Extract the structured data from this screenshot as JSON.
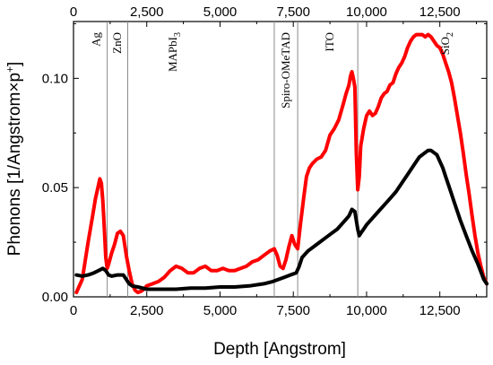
{
  "chart_data": {
    "type": "line",
    "xlabel": "Depth [Angstrom]",
    "ylabel_parts": {
      "main": "Phonons [1/Angstrom×p",
      "sup": "+",
      "end": "]"
    },
    "xlim": [
      0,
      14100
    ],
    "ylim": [
      0,
      0.126
    ],
    "xticks": [
      0,
      2500,
      5000,
      7500,
      10000,
      12500
    ],
    "xtick_labels": [
      "0",
      "2,500",
      "5,000",
      "7,500",
      "10,000",
      "12,500"
    ],
    "top_xticks": [
      0,
      2500,
      5000,
      7500,
      10000,
      12500
    ],
    "top_xtick_labels": [
      "0",
      "2,500",
      "5,000",
      "7,500",
      "10,000",
      "12,500"
    ],
    "yticks": [
      0.0,
      0.05,
      0.1
    ],
    "ytick_labels": [
      "0.00",
      "0.05",
      "0.10"
    ],
    "grid": false,
    "layer_boundaries": [
      1150,
      1850,
      6850,
      7650,
      9700
    ],
    "layers": [
      {
        "label": "Ag",
        "x": 780,
        "rotate": -90
      },
      {
        "label": "ZnO",
        "x": 1500,
        "rotate": -90
      },
      {
        "label": "MAPbI",
        "sub": "3",
        "x": 3400,
        "rotate": -90
      },
      {
        "label": "Spiro-OMeTAD",
        "x": 7250,
        "rotate": -90
      },
      {
        "label": "ITO",
        "x": 8750,
        "rotate": -90
      },
      {
        "label": "SiO",
        "sub": "2",
        "x": 12700,
        "rotate": -90
      }
    ],
    "series": [
      {
        "color": "#ff0000",
        "x": [
          100,
          300,
          500,
          650,
          750,
          850,
          900,
          950,
          1000,
          1050,
          1100,
          1150,
          1200,
          1300,
          1400,
          1500,
          1600,
          1700,
          1800,
          1900,
          2000,
          2100,
          2200,
          2300,
          2400,
          2500,
          2700,
          2900,
          3100,
          3300,
          3500,
          3700,
          3900,
          4100,
          4300,
          4500,
          4700,
          4900,
          5100,
          5300,
          5500,
          5700,
          5900,
          6100,
          6300,
          6500,
          6700,
          6850,
          6950,
          7050,
          7150,
          7250,
          7350,
          7450,
          7550,
          7650,
          7750,
          7850,
          7950,
          8050,
          8150,
          8300,
          8450,
          8600,
          8750,
          8900,
          9050,
          9200,
          9300,
          9400,
          9450,
          9500,
          9550,
          9600,
          9650,
          9700,
          9750,
          9800,
          9900,
          10000,
          10100,
          10200,
          10300,
          10400,
          10500,
          10600,
          10700,
          10800,
          10900,
          11000,
          11100,
          11200,
          11300,
          11400,
          11500,
          11600,
          11700,
          11800,
          11900,
          12000,
          12100,
          12200,
          12300,
          12400,
          12500,
          12600,
          12700,
          12800,
          12900,
          13000,
          13100,
          13200,
          13300,
          13400,
          13500,
          13600,
          13700,
          13800,
          13900,
          14000,
          14100
        ],
        "y": [
          0.002,
          0.008,
          0.025,
          0.037,
          0.045,
          0.051,
          0.054,
          0.052,
          0.044,
          0.032,
          0.018,
          0.013,
          0.015,
          0.02,
          0.024,
          0.029,
          0.03,
          0.028,
          0.019,
          0.012,
          0.006,
          0.003,
          0.002,
          0.0025,
          0.0035,
          0.005,
          0.006,
          0.007,
          0.009,
          0.012,
          0.014,
          0.013,
          0.011,
          0.011,
          0.013,
          0.014,
          0.012,
          0.012,
          0.013,
          0.012,
          0.012,
          0.013,
          0.014,
          0.016,
          0.017,
          0.019,
          0.021,
          0.022,
          0.019,
          0.014,
          0.013,
          0.017,
          0.023,
          0.028,
          0.024,
          0.022,
          0.034,
          0.045,
          0.055,
          0.059,
          0.061,
          0.063,
          0.064,
          0.067,
          0.074,
          0.077,
          0.081,
          0.088,
          0.093,
          0.097,
          0.101,
          0.103,
          0.1,
          0.096,
          0.066,
          0.049,
          0.055,
          0.069,
          0.077,
          0.083,
          0.085,
          0.083,
          0.084,
          0.087,
          0.091,
          0.093,
          0.094,
          0.097,
          0.098,
          0.102,
          0.105,
          0.107,
          0.11,
          0.114,
          0.117,
          0.119,
          0.12,
          0.12,
          0.12,
          0.119,
          0.12,
          0.119,
          0.117,
          0.115,
          0.114,
          0.111,
          0.107,
          0.103,
          0.098,
          0.091,
          0.083,
          0.075,
          0.066,
          0.056,
          0.047,
          0.037,
          0.028,
          0.02,
          0.014,
          0.009,
          0.006
        ],
        "name": ""
      },
      {
        "color": "#000000",
        "x": [
          100,
          300,
          500,
          700,
          850,
          1000,
          1100,
          1200,
          1300,
          1500,
          1700,
          1800,
          1900,
          2000,
          2200,
          2500,
          3000,
          3500,
          4000,
          4500,
          5000,
          5500,
          6000,
          6500,
          6800,
          7000,
          7200,
          7400,
          7600,
          7700,
          7800,
          8000,
          8200,
          8400,
          8600,
          8800,
          9000,
          9200,
          9400,
          9500,
          9600,
          9700,
          9750,
          9800,
          9900,
          10000,
          10200,
          10400,
          10600,
          10800,
          11000,
          11200,
          11400,
          11600,
          11800,
          12000,
          12100,
          12200,
          12300,
          12400,
          12500,
          12600,
          12700,
          12800,
          12900,
          13000,
          13200,
          13400,
          13600,
          13800,
          14000,
          14100
        ],
        "y": [
          0.01,
          0.0095,
          0.01,
          0.011,
          0.012,
          0.013,
          0.012,
          0.01,
          0.0095,
          0.01,
          0.01,
          0.008,
          0.006,
          0.005,
          0.0045,
          0.0035,
          0.0035,
          0.0035,
          0.004,
          0.004,
          0.0045,
          0.0045,
          0.005,
          0.006,
          0.007,
          0.008,
          0.009,
          0.01,
          0.011,
          0.014,
          0.018,
          0.021,
          0.023,
          0.025,
          0.027,
          0.029,
          0.031,
          0.034,
          0.037,
          0.04,
          0.039,
          0.031,
          0.028,
          0.029,
          0.031,
          0.033,
          0.036,
          0.039,
          0.042,
          0.045,
          0.048,
          0.052,
          0.056,
          0.06,
          0.064,
          0.066,
          0.067,
          0.067,
          0.066,
          0.065,
          0.062,
          0.059,
          0.055,
          0.051,
          0.047,
          0.043,
          0.035,
          0.028,
          0.021,
          0.015,
          0.008,
          0.006
        ],
        "name": ""
      }
    ]
  }
}
